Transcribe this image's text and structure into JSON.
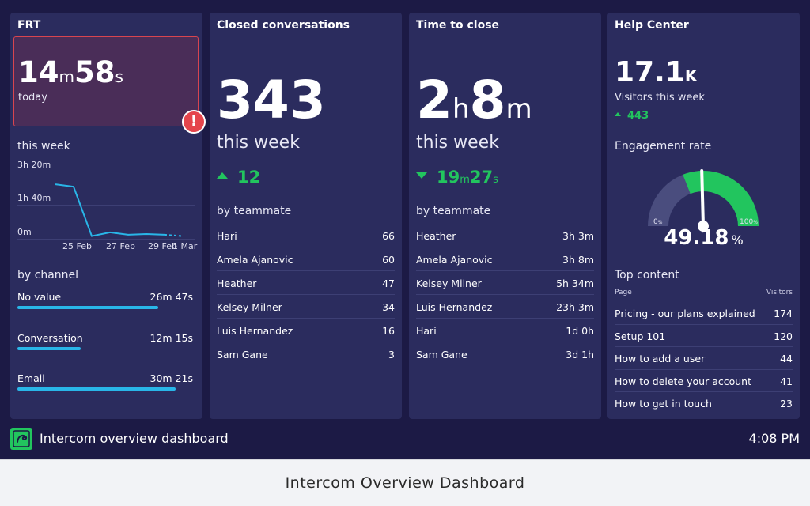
{
  "colors": {
    "background": "#1c1a45",
    "panel": "#2b2c5e",
    "positive": "#22c55e",
    "alert": "#e5454c",
    "channel_bar": "#29b6e8",
    "gauge_fill": "#22c55e",
    "gauge_track": "#4a4d7e"
  },
  "frt": {
    "title": "FRT",
    "today_num1": "14",
    "today_unit1": "m",
    "today_num2": "58",
    "today_unit2": "s",
    "today_label": "today",
    "alert_icon": "exclamation-icon",
    "alert_glyph": "!",
    "week_label": "this week",
    "chart_data": {
      "type": "line",
      "ytick_labels": [
        "3h 20m",
        "1h 40m",
        "0m"
      ],
      "yticks_minutes": [
        200,
        100,
        0
      ],
      "ylim_minutes": [
        0,
        200
      ],
      "xtick_labels": [
        "25 Feb",
        "27 Feb",
        "29 Feb",
        "1 Mar"
      ],
      "x_dates": [
        "24 Feb",
        "25 Feb",
        "26 Feb",
        "27 Feb",
        "28 Feb",
        "29 Feb",
        "1 Mar",
        "2 Mar"
      ],
      "values_minutes": [
        162,
        155,
        8,
        19,
        12,
        14,
        12,
        8
      ],
      "dashed_from_index": 6
    },
    "channel_label": "by channel",
    "channels": [
      {
        "name": "No value",
        "value": "26m 47s",
        "fraction": 0.8
      },
      {
        "name": "Conversation",
        "value": "12m 15s",
        "fraction": 0.36
      },
      {
        "name": "Email",
        "value": "30m 21s",
        "fraction": 0.9
      }
    ]
  },
  "closed": {
    "title": "Closed conversations",
    "value": "343",
    "sub": "this week",
    "delta": "12",
    "delta_direction": "up",
    "teammate_label": "by teammate",
    "teammates": [
      {
        "name": "Hari",
        "value": "66"
      },
      {
        "name": "Amela Ajanovic",
        "value": "60"
      },
      {
        "name": "Heather",
        "value": "47"
      },
      {
        "name": "Kelsey Milner",
        "value": "34"
      },
      {
        "name": "Luis Hernandez",
        "value": "16"
      },
      {
        "name": "Sam Gane",
        "value": "3"
      }
    ]
  },
  "ttc": {
    "title": "Time to close",
    "num1": "2",
    "unit1": "h",
    "num2": "8",
    "unit2": "m",
    "sub": "this week",
    "delta_num1": "19",
    "delta_unit1": "m",
    "delta_num2": "27",
    "delta_unit2": "s",
    "delta_direction": "down",
    "teammate_label": "by teammate",
    "teammates": [
      {
        "name": "Heather",
        "value": "3h 3m"
      },
      {
        "name": "Amela Ajanovic",
        "value": "3h 8m"
      },
      {
        "name": "Kelsey Milner",
        "value": "5h 34m"
      },
      {
        "name": "Luis Hernandez",
        "value": "23h 3m"
      },
      {
        "name": "Hari",
        "value": "1d 0h"
      },
      {
        "name": "Sam Gane",
        "value": "3d 1h"
      }
    ]
  },
  "help": {
    "title": "Help Center",
    "visitors_num": "17.1",
    "visitors_unit": "K",
    "visitors_label": "Visitors this week",
    "visitors_delta": "443",
    "engagement_label": "Engagement rate",
    "gauge_min": "0",
    "gauge_min_unit": "%",
    "gauge_max": "100",
    "gauge_max_unit": "%",
    "engagement_value": "49.18",
    "engagement_unit": "%",
    "engagement_fraction": 0.4918,
    "top_content_label": "Top content",
    "col_page": "Page",
    "col_visitors": "Visitors",
    "content": [
      {
        "page": "Pricing - our plans explained",
        "visitors": "174"
      },
      {
        "page": "Setup 101",
        "visitors": "120"
      },
      {
        "page": "How to add a user",
        "visitors": "44"
      },
      {
        "page": "How to delete your account",
        "visitors": "41"
      },
      {
        "page": "How to get in touch",
        "visitors": "23"
      }
    ]
  },
  "footer": {
    "logo_icon": "intercom-logo-icon",
    "title": "Intercom overview dashboard",
    "time": "4:08 PM"
  },
  "caption": "Intercom Overview Dashboard"
}
